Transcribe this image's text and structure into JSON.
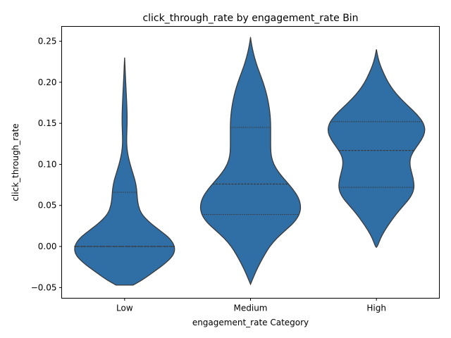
{
  "chart_data": {
    "type": "violin",
    "title": "click_through_rate by engagement_rate Bin",
    "xlabel": "engagement_rate Category",
    "ylabel": "click_through_rate",
    "ylim": [
      -0.063,
      0.268
    ],
    "yticks": [
      -0.05,
      0.0,
      0.05,
      0.1,
      0.15,
      0.2,
      0.25
    ],
    "ytick_labels": [
      "−0.05",
      "0.00",
      "0.05",
      "0.10",
      "0.15",
      "0.20",
      "0.25"
    ],
    "categories": [
      "Low",
      "Medium",
      "High"
    ],
    "color": "#2f6fa6",
    "edge_color": "#3a3a3a",
    "violins": [
      {
        "category": "Low",
        "quartiles": [
          0.0,
          0.0,
          0.066
        ],
        "profile": [
          [
            -0.047,
            0.17
          ],
          [
            -0.045,
            0.23
          ],
          [
            -0.04,
            0.37
          ],
          [
            -0.03,
            0.6
          ],
          [
            -0.02,
            0.82
          ],
          [
            -0.01,
            0.98
          ],
          [
            0.0,
            1.0
          ],
          [
            0.01,
            0.9
          ],
          [
            0.02,
            0.69
          ],
          [
            0.03,
            0.48
          ],
          [
            0.04,
            0.33
          ],
          [
            0.05,
            0.27
          ],
          [
            0.06,
            0.25
          ],
          [
            0.07,
            0.24
          ],
          [
            0.08,
            0.21
          ],
          [
            0.09,
            0.16
          ],
          [
            0.1,
            0.11
          ],
          [
            0.11,
            0.07
          ],
          [
            0.12,
            0.045
          ],
          [
            0.13,
            0.04
          ],
          [
            0.14,
            0.045
          ],
          [
            0.15,
            0.05
          ],
          [
            0.16,
            0.05
          ],
          [
            0.17,
            0.045
          ],
          [
            0.18,
            0.038
          ],
          [
            0.19,
            0.03
          ],
          [
            0.2,
            0.022
          ],
          [
            0.21,
            0.014
          ],
          [
            0.22,
            0.008
          ],
          [
            0.23,
            0.0
          ]
        ]
      },
      {
        "category": "Medium",
        "quartiles": [
          0.039,
          0.076,
          0.145
        ],
        "profile": [
          [
            -0.046,
            0.0
          ],
          [
            -0.04,
            0.04
          ],
          [
            -0.03,
            0.11
          ],
          [
            -0.02,
            0.19
          ],
          [
            -0.01,
            0.28
          ],
          [
            0.0,
            0.38
          ],
          [
            0.01,
            0.52
          ],
          [
            0.02,
            0.7
          ],
          [
            0.03,
            0.88
          ],
          [
            0.04,
            0.98
          ],
          [
            0.05,
            1.0
          ],
          [
            0.06,
            0.95
          ],
          [
            0.07,
            0.84
          ],
          [
            0.08,
            0.7
          ],
          [
            0.09,
            0.56
          ],
          [
            0.1,
            0.46
          ],
          [
            0.11,
            0.41
          ],
          [
            0.12,
            0.4
          ],
          [
            0.13,
            0.4
          ],
          [
            0.14,
            0.4
          ],
          [
            0.15,
            0.4
          ],
          [
            0.16,
            0.39
          ],
          [
            0.17,
            0.37
          ],
          [
            0.18,
            0.34
          ],
          [
            0.19,
            0.3
          ],
          [
            0.2,
            0.25
          ],
          [
            0.21,
            0.19
          ],
          [
            0.22,
            0.13
          ],
          [
            0.23,
            0.08
          ],
          [
            0.24,
            0.04
          ],
          [
            0.25,
            0.01
          ],
          [
            0.255,
            0.0
          ]
        ]
      },
      {
        "category": "High",
        "quartiles": [
          0.072,
          0.117,
          0.152
        ],
        "profile": [
          [
            -0.001,
            0.0
          ],
          [
            0.0,
            0.02
          ],
          [
            0.01,
            0.08
          ],
          [
            0.02,
            0.17
          ],
          [
            0.03,
            0.28
          ],
          [
            0.04,
            0.4
          ],
          [
            0.05,
            0.54
          ],
          [
            0.06,
            0.68
          ],
          [
            0.07,
            0.75
          ],
          [
            0.08,
            0.74
          ],
          [
            0.09,
            0.7
          ],
          [
            0.1,
            0.66
          ],
          [
            0.11,
            0.68
          ],
          [
            0.12,
            0.78
          ],
          [
            0.13,
            0.9
          ],
          [
            0.14,
            0.97
          ],
          [
            0.15,
            0.94
          ],
          [
            0.16,
            0.82
          ],
          [
            0.17,
            0.65
          ],
          [
            0.18,
            0.48
          ],
          [
            0.19,
            0.34
          ],
          [
            0.2,
            0.23
          ],
          [
            0.21,
            0.15
          ],
          [
            0.22,
            0.08
          ],
          [
            0.23,
            0.03
          ],
          [
            0.24,
            0.0
          ]
        ]
      }
    ],
    "grid": false
  }
}
